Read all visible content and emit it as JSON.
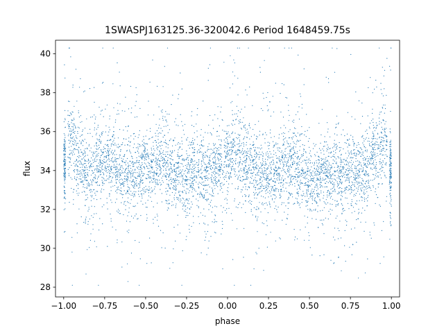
{
  "chart_data": {
    "type": "scatter",
    "title": "1SWASPJ163125.36-320042.6 Period 1648459.75s",
    "xlabel": "phase",
    "ylabel": "flux",
    "xlim": [
      -1.05,
      1.05
    ],
    "ylim": [
      27.5,
      40.7
    ],
    "x_ticks": [
      -1.0,
      -0.75,
      -0.5,
      -0.25,
      0.0,
      0.25,
      0.5,
      0.75,
      1.0
    ],
    "x_tick_labels": [
      "−1.00",
      "−0.75",
      "−0.50",
      "−0.25",
      "0.00",
      "0.25",
      "0.50",
      "0.75",
      "1.00"
    ],
    "y_ticks": [
      28,
      30,
      32,
      34,
      36,
      38,
      40
    ],
    "y_tick_labels": [
      "28",
      "30",
      "32",
      "34",
      "36",
      "38",
      "40"
    ],
    "grid": false,
    "legend": "none",
    "marker_color": "#1f77b4",
    "series": [
      {
        "x": [
          -1.0,
          -0.95,
          -0.9,
          -0.85,
          -0.8,
          -0.75,
          -0.7,
          -0.65,
          -0.6,
          -0.55,
          -0.5,
          -0.45,
          -0.4,
          -0.35,
          -0.3,
          -0.25,
          -0.2,
          -0.15,
          -0.1,
          -0.05,
          0.0,
          0.05,
          0.1,
          0.15,
          0.2,
          0.25,
          0.3,
          0.35,
          0.4,
          0.45,
          0.5,
          0.55,
          0.6,
          0.65,
          0.7,
          0.75,
          0.8,
          0.85,
          0.9,
          0.95,
          1.0
        ],
        "y": [
          34.2,
          35.6,
          34.3,
          33.9,
          34.4,
          34.6,
          34.4,
          33.9,
          33.8,
          33.6,
          34.2,
          34.3,
          34.5,
          33.9,
          33.7,
          33.4,
          34.2,
          33.6,
          34.0,
          34.4,
          34.5,
          35.0,
          34.3,
          34.2,
          33.8,
          33.9,
          34.0,
          34.4,
          34.3,
          33.7,
          33.5,
          33.7,
          34.0,
          33.9,
          33.6,
          33.9,
          34.0,
          34.2,
          34.8,
          35.2,
          34.0
        ],
        "spread": [
          1.6,
          2.3,
          1.7,
          1.6,
          1.8,
          1.5,
          1.5,
          1.9,
          1.8,
          1.7,
          1.5,
          1.5,
          1.6,
          1.6,
          1.6,
          1.7,
          1.7,
          1.6,
          1.8,
          1.8,
          1.7,
          2.0,
          1.7,
          1.6,
          1.8,
          1.5,
          1.6,
          1.9,
          1.6,
          1.7,
          1.6,
          1.6,
          1.6,
          1.5,
          1.6,
          1.6,
          1.8,
          1.8,
          2.0,
          2.2,
          1.8
        ]
      }
    ]
  }
}
